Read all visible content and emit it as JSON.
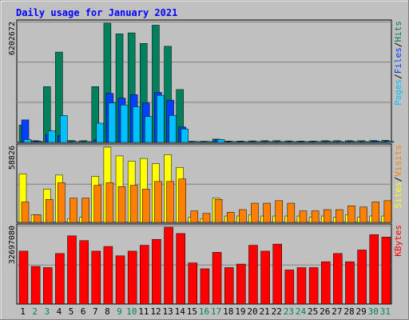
{
  "chart_data": [
    {
      "type": "bar",
      "title": "Daily usage for January 2021",
      "ymax_label": "6202672",
      "legend": [
        "Pages",
        "/",
        "Files",
        "/",
        "Hits"
      ],
      "colors": {
        "hits": "#00805c",
        "files": "#0040ff",
        "pages": "#00c0ff"
      },
      "categories": [
        "1",
        "2",
        "3",
        "4",
        "5",
        "6",
        "7",
        "8",
        "9",
        "10",
        "11",
        "12",
        "13",
        "14",
        "15",
        "16",
        "17",
        "18",
        "19",
        "20",
        "21",
        "22",
        "23",
        "24",
        "25",
        "26",
        "27",
        "28",
        "29",
        "30",
        "31"
      ],
      "series": [
        {
          "name": "Hits",
          "values": [
            900000,
            90000,
            2900000,
            4700000,
            100000,
            90000,
            2900000,
            6202672,
            5650000,
            5700000,
            5150000,
            6100000,
            5000000,
            2750000,
            60000,
            60000,
            170000,
            70000,
            70000,
            80000,
            90000,
            90000,
            80000,
            70000,
            70000,
            90000,
            90000,
            90000,
            90000,
            100000,
            110000
          ]
        },
        {
          "name": "Files",
          "values": [
            1170000,
            70000,
            420000,
            350000,
            40000,
            40000,
            130000,
            2550000,
            2300000,
            2480000,
            2050000,
            2600000,
            2200000,
            800000,
            40000,
            40000,
            150000,
            40000,
            40000,
            40000,
            50000,
            40000,
            40000,
            40000,
            40000,
            60000,
            40000,
            60000,
            40000,
            70000,
            60000
          ]
        },
        {
          "name": "Pages",
          "values": [
            150000,
            30000,
            600000,
            1400000,
            40000,
            40000,
            1000000,
            2050000,
            1950000,
            1850000,
            1350000,
            2450000,
            1400000,
            700000,
            30000,
            30000,
            150000,
            30000,
            30000,
            30000,
            40000,
            30000,
            30000,
            30000,
            30000,
            40000,
            30000,
            40000,
            40000,
            40000,
            50000
          ]
        }
      ]
    },
    {
      "type": "bar",
      "ymax_label": "58826",
      "legend": [
        "Sites",
        "/",
        "Visits"
      ],
      "colors": {
        "visits": "#ffff00",
        "sites": "#ff8000"
      },
      "categories": [
        "1",
        "2",
        "3",
        "4",
        "5",
        "6",
        "7",
        "8",
        "9",
        "10",
        "11",
        "12",
        "13",
        "14",
        "15",
        "16",
        "17",
        "18",
        "19",
        "20",
        "21",
        "22",
        "23",
        "24",
        "25",
        "26",
        "27",
        "28",
        "29",
        "30",
        "31"
      ],
      "series": [
        {
          "name": "Visits",
          "values": [
            38000,
            6000,
            26000,
            37000,
            3000,
            4000,
            36000,
            58826,
            52000,
            48000,
            50000,
            46000,
            53000,
            43000,
            4000,
            3000,
            19000,
            5000,
            5000,
            6000,
            5000,
            5000,
            5000,
            5000,
            4000,
            5000,
            4000,
            6000,
            4000,
            5000,
            5000
          ]
        },
        {
          "name": "Sites",
          "values": [
            16000,
            6000,
            18000,
            31000,
            19000,
            19000,
            29000,
            31000,
            28000,
            29000,
            26000,
            32000,
            32000,
            34000,
            9000,
            7000,
            18000,
            8000,
            10000,
            15000,
            15000,
            17000,
            15000,
            9000,
            9000,
            10000,
            10000,
            13000,
            12000,
            16000,
            17000
          ]
        }
      ]
    },
    {
      "type": "bar",
      "ymax_label": "32697080",
      "legend": [
        "KBytes"
      ],
      "colors": {
        "kbytes": "#ff0000"
      },
      "categories": [
        "1",
        "2",
        "3",
        "4",
        "5",
        "6",
        "7",
        "8",
        "9",
        "10",
        "11",
        "12",
        "13",
        "14",
        "15",
        "16",
        "17",
        "18",
        "19",
        "20",
        "21",
        "22",
        "23",
        "24",
        "25",
        "26",
        "27",
        "28",
        "29",
        "30",
        "31"
      ],
      "series": [
        {
          "name": "KBytes",
          "values": [
            22500000,
            16000000,
            15500000,
            21500000,
            29000000,
            27000000,
            22500000,
            24500000,
            20500000,
            22500000,
            25000000,
            27500000,
            32697080,
            30000000,
            17500000,
            15000000,
            22000000,
            15500000,
            17000000,
            25000000,
            22500000,
            25500000,
            14500000,
            15500000,
            15500000,
            18000000,
            21500000,
            18000000,
            23000000,
            29500000,
            28500000
          ]
        }
      ]
    }
  ],
  "weekend_days": [
    2,
    3,
    9,
    10,
    16,
    17,
    23,
    24,
    30,
    31
  ]
}
